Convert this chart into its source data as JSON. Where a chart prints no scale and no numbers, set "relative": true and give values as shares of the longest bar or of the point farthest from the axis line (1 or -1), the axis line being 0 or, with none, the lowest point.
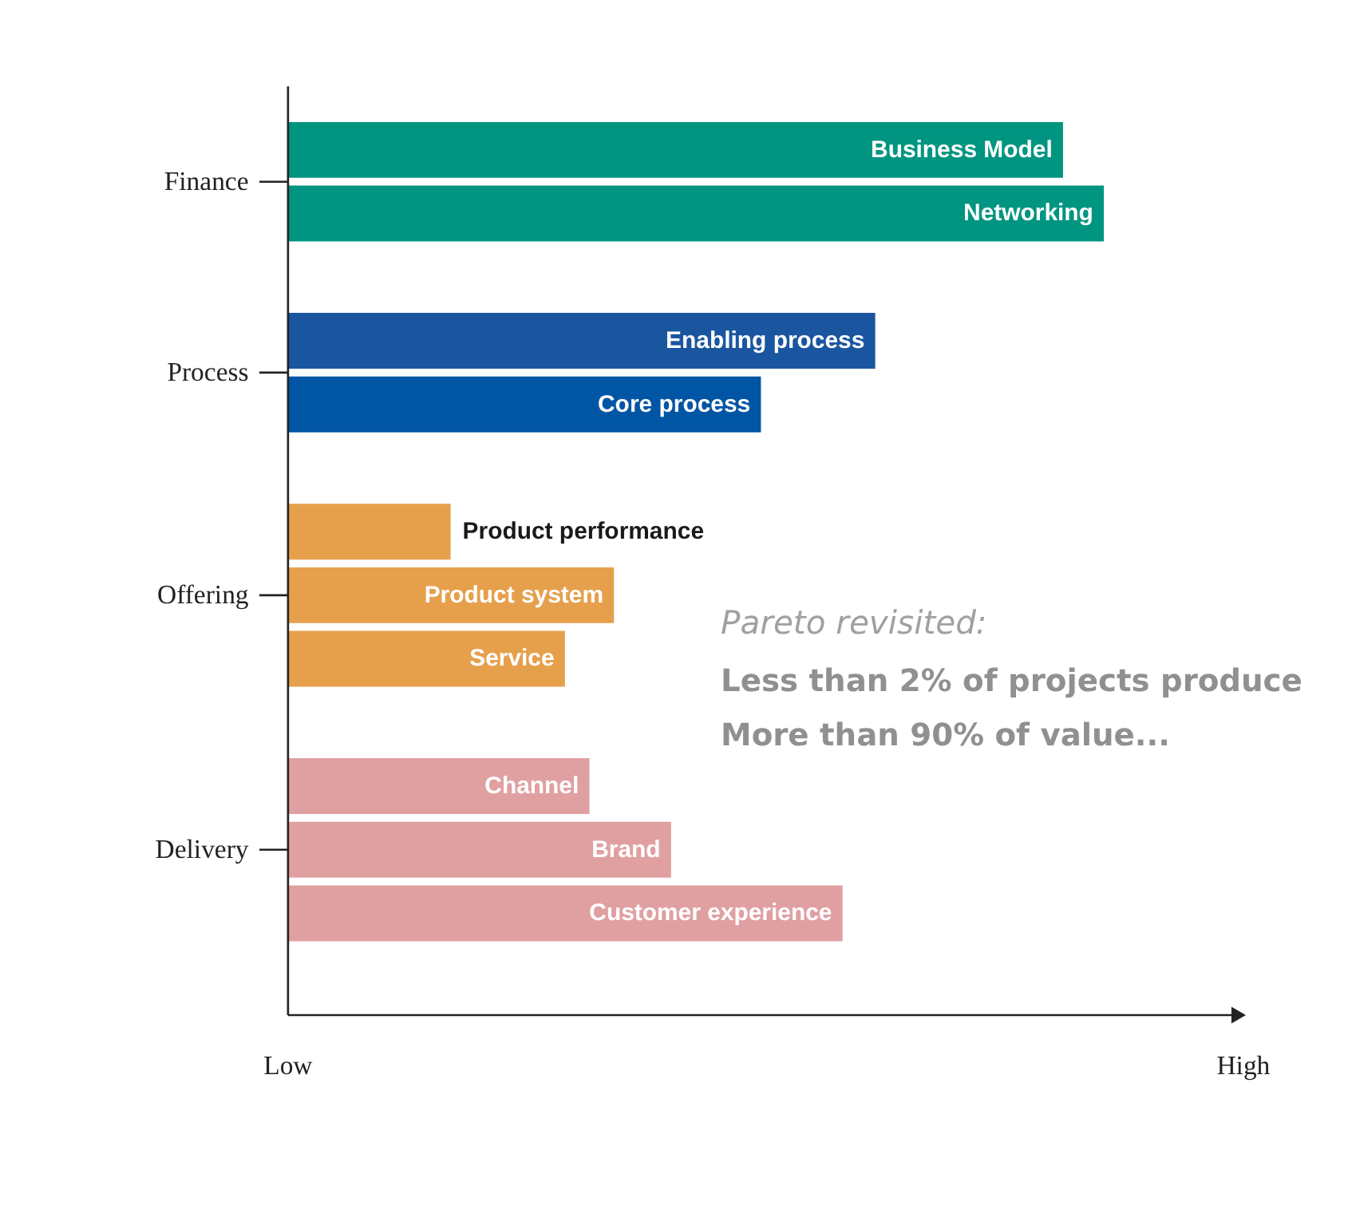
{
  "chart_data": {
    "type": "bar",
    "orientation": "horizontal",
    "relative": true,
    "categories": [
      "Business Model",
      "Networking",
      null,
      "Enabling process",
      "Core process",
      null,
      "Product performance",
      "Product system",
      "Service",
      null,
      "Channel",
      "Brand",
      "Customer experience"
    ],
    "values": [
      0.95,
      1,
      null,
      0.72,
      0.58,
      null,
      0.2,
      0.4,
      0.34,
      null,
      0.37,
      0.47,
      0.68
    ],
    "colors": [
      "#009580",
      "#009580",
      null,
      "#1a56a0",
      "#0055a4",
      null,
      "#e6a04c",
      "#e6a04c",
      "#e6a04c",
      null,
      "#e0a0a2",
      "#e0a0a2",
      "#e0a0a2"
    ],
    "annotations": [
      "Finance",
      "Process",
      "Offering",
      "Delivery",
      "Pareto revisited:",
      "Less than 2% of projects produce",
      "More than 90% of value...",
      "Low",
      "High"
    ]
  }
}
